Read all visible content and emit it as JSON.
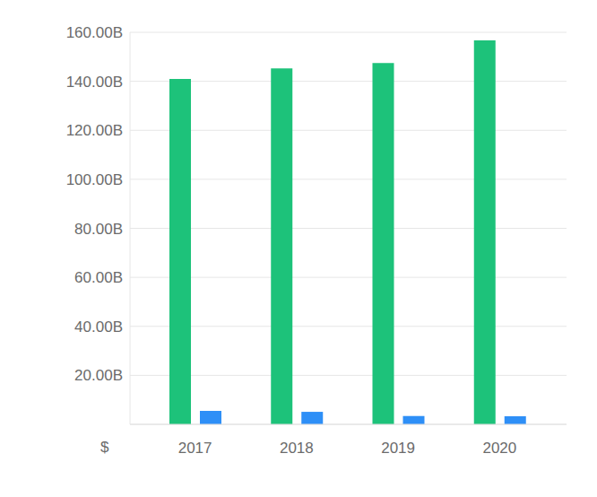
{
  "chart_data": {
    "type": "bar",
    "y_label": "$",
    "categories": [
      "2017",
      "2018",
      "2019",
      "2020"
    ],
    "series": [
      {
        "color": "#1dc27a",
        "values": [
          141000000000,
          145300000000,
          147500000000,
          156700000000
        ]
      },
      {
        "color": "#2e8ff7",
        "values": [
          5500000000,
          5100000000,
          3400000000,
          3300000000
        ]
      }
    ],
    "ylim": [
      0,
      160000000000
    ],
    "yticks": [
      {
        "value": 20000000000,
        "label": "20.00B"
      },
      {
        "value": 40000000000,
        "label": "40.00B"
      },
      {
        "value": 60000000000,
        "label": "60.00B"
      },
      {
        "value": 80000000000,
        "label": "80.00B"
      },
      {
        "value": 100000000000,
        "label": "100.00B"
      },
      {
        "value": 120000000000,
        "label": "120.00B"
      },
      {
        "value": 140000000000,
        "label": "140.00B"
      },
      {
        "value": 160000000000,
        "label": "160.00B"
      }
    ],
    "grid": true
  }
}
